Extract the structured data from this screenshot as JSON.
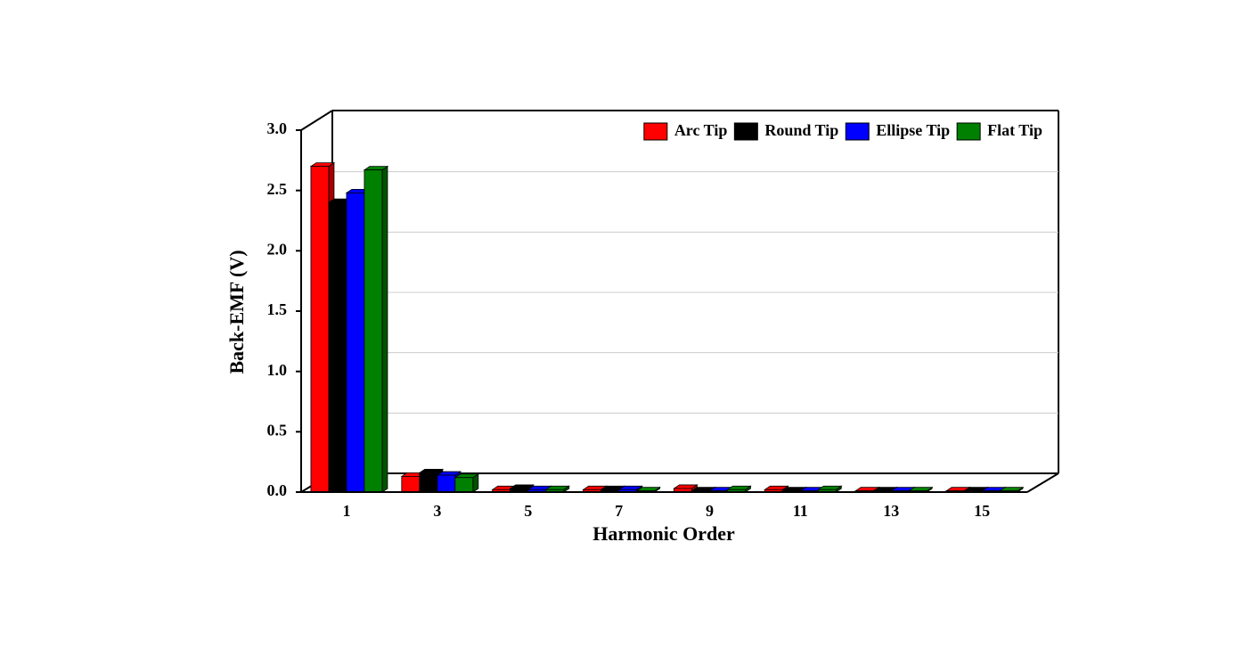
{
  "chart_data": {
    "type": "bar3d",
    "x_label": "Harmonic Order",
    "y_label": "Back-EMF (V)",
    "categories": [
      "1",
      "3",
      "5",
      "7",
      "9",
      "11",
      "13",
      "15"
    ],
    "series": [
      {
        "name": "Arc Tip",
        "color": "#ff0000",
        "values": [
          2.7,
          0.13,
          0.02,
          0.02,
          0.03,
          0.02,
          0.01,
          0.01
        ]
      },
      {
        "name": "Round Tip",
        "color": "#000000",
        "values": [
          2.4,
          0.16,
          0.03,
          0.02,
          0.01,
          0.01,
          0.01,
          0.01
        ]
      },
      {
        "name": "Ellipse Tip",
        "color": "#0000ff",
        "values": [
          2.48,
          0.14,
          0.02,
          0.02,
          0.01,
          0.01,
          0.01,
          0.01
        ]
      },
      {
        "name": "Flat Tip",
        "color": "#008000",
        "values": [
          2.67,
          0.12,
          0.02,
          0.01,
          0.02,
          0.02,
          0.01,
          0.01
        ]
      }
    ],
    "ylim": [
      0,
      3
    ],
    "yticks": [
      {
        "value": 0,
        "label": "0.0"
      },
      0.5,
      {
        "value": 1,
        "label": "1.0"
      },
      1.5,
      {
        "value": 2,
        "label": "2.0"
      },
      2.5,
      {
        "value": 3,
        "label": "3.0"
      }
    ],
    "grid": true,
    "legend": "top-right"
  }
}
